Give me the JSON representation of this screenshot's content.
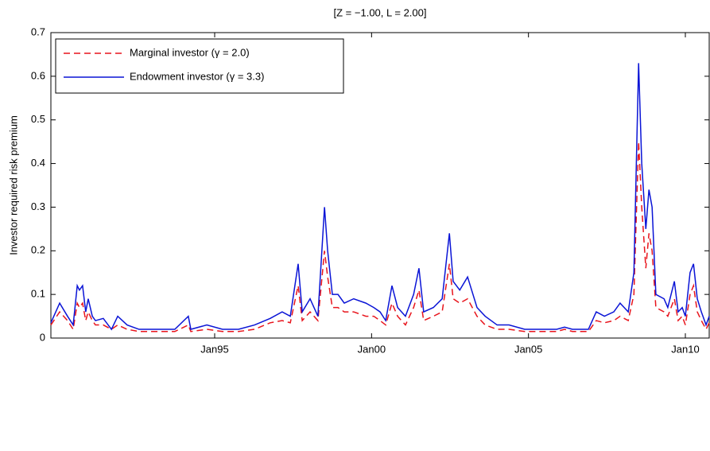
{
  "chart_data": {
    "type": "line",
    "title": "[Z = −1.00, L = 2.00]",
    "ylabel": "Investor required risk premium",
    "x": [
      1989.78,
      1990.06,
      1990.31,
      1990.49,
      1990.62,
      1990.69,
      1990.79,
      1990.89,
      1990.97,
      1991.1,
      1991.2,
      1991.45,
      1991.71,
      1991.91,
      1992.21,
      1992.59,
      1993.23,
      1993.73,
      1994.16,
      1994.24,
      1994.75,
      1995.25,
      1995.76,
      1996.27,
      1996.77,
      1997.15,
      1997.41,
      1997.66,
      1997.79,
      1998.04,
      1998.29,
      1998.5,
      1998.6,
      1998.75,
      1998.93,
      1999.13,
      1999.43,
      1999.82,
      2000.07,
      2000.27,
      2000.45,
      2000.65,
      2000.83,
      2001.08,
      2001.34,
      2001.51,
      2001.66,
      2001.97,
      2002.25,
      2002.48,
      2002.6,
      2002.81,
      2003.06,
      2003.36,
      2003.62,
      2004.0,
      2004.38,
      2004.88,
      2005.39,
      2005.9,
      2006.15,
      2006.4,
      2006.91,
      2007.16,
      2007.42,
      2007.72,
      2007.92,
      2008.18,
      2008.36,
      2008.51,
      2008.61,
      2008.74,
      2008.84,
      2008.94,
      2009.06,
      2009.32,
      2009.44,
      2009.65,
      2009.77,
      2009.9,
      2010.0,
      2010.15,
      2010.26,
      2010.38,
      2010.51,
      2010.66,
      2010.76
    ],
    "series": [
      {
        "name": "Marginal investor (γ = 2.0)",
        "color": "#e8141c",
        "dash": true,
        "values": [
          0.03,
          0.06,
          0.04,
          0.02,
          0.08,
          0.07,
          0.08,
          0.04,
          0.06,
          0.04,
          0.03,
          0.03,
          0.02,
          0.03,
          0.02,
          0.015,
          0.015,
          0.015,
          0.03,
          0.015,
          0.02,
          0.015,
          0.015,
          0.02,
          0.035,
          0.04,
          0.035,
          0.12,
          0.04,
          0.06,
          0.04,
          0.2,
          0.14,
          0.07,
          0.07,
          0.06,
          0.06,
          0.05,
          0.05,
          0.04,
          0.03,
          0.08,
          0.05,
          0.03,
          0.07,
          0.11,
          0.04,
          0.05,
          0.06,
          0.17,
          0.09,
          0.08,
          0.09,
          0.05,
          0.03,
          0.02,
          0.02,
          0.015,
          0.015,
          0.015,
          0.02,
          0.015,
          0.015,
          0.04,
          0.035,
          0.04,
          0.05,
          0.04,
          0.1,
          0.45,
          0.3,
          0.16,
          0.24,
          0.2,
          0.07,
          0.06,
          0.05,
          0.09,
          0.04,
          0.05,
          0.03,
          0.1,
          0.12,
          0.06,
          0.04,
          0.02,
          0.035
        ]
      },
      {
        "name": "Endowment investor (γ = 3.3)",
        "color": "#0a14d6",
        "dash": false,
        "values": [
          0.035,
          0.08,
          0.05,
          0.03,
          0.12,
          0.11,
          0.12,
          0.06,
          0.09,
          0.05,
          0.04,
          0.045,
          0.02,
          0.05,
          0.03,
          0.02,
          0.02,
          0.02,
          0.05,
          0.02,
          0.03,
          0.02,
          0.02,
          0.03,
          0.045,
          0.06,
          0.05,
          0.17,
          0.06,
          0.09,
          0.05,
          0.3,
          0.2,
          0.1,
          0.1,
          0.08,
          0.09,
          0.08,
          0.07,
          0.06,
          0.04,
          0.12,
          0.07,
          0.05,
          0.1,
          0.16,
          0.06,
          0.07,
          0.09,
          0.24,
          0.13,
          0.11,
          0.14,
          0.07,
          0.05,
          0.03,
          0.03,
          0.02,
          0.02,
          0.02,
          0.025,
          0.02,
          0.02,
          0.06,
          0.05,
          0.06,
          0.08,
          0.06,
          0.15,
          0.63,
          0.4,
          0.25,
          0.34,
          0.3,
          0.1,
          0.09,
          0.07,
          0.13,
          0.06,
          0.07,
          0.05,
          0.15,
          0.17,
          0.09,
          0.06,
          0.03,
          0.05
        ]
      }
    ],
    "xlim": [
      1989.78,
      2010.76
    ],
    "xticks": [
      {
        "value": 1995,
        "label": "Jan95"
      },
      {
        "value": 2000,
        "label": "Jan00"
      },
      {
        "value": 2005,
        "label": "Jan05"
      },
      {
        "value": 2010,
        "label": "Jan10"
      }
    ],
    "ylim": [
      0,
      0.7
    ],
    "yticks": [
      0,
      0.1,
      0.2,
      0.3,
      0.4,
      0.5,
      0.6,
      0.7
    ],
    "legend": "upper left"
  }
}
